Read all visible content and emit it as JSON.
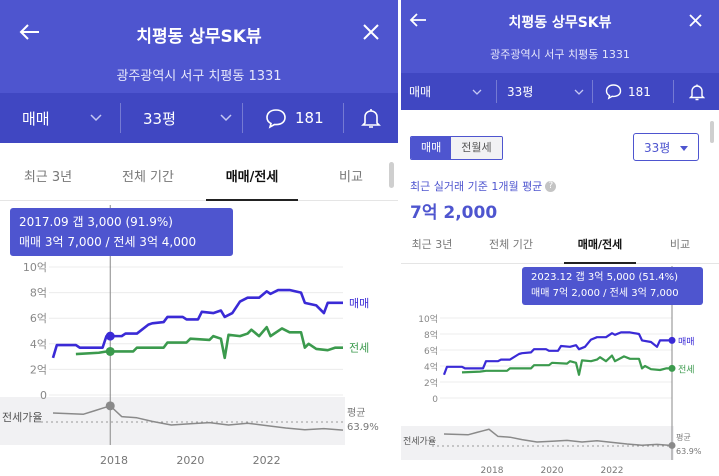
{
  "colors": {
    "header": "#4e55cf",
    "filter_bar": "#4047c2",
    "sale_line": "#3a2ad6",
    "rent_line": "#3b9a4d",
    "ratio_line": "#8a8a8a"
  },
  "left": {
    "header": {
      "title": "치평동 상무SK뷰",
      "address": "광주광역시 서구 치평동 1331"
    },
    "filters": {
      "deal_type": "매매",
      "size": "33평",
      "comments": "181"
    },
    "tabs": [
      "최근 3년",
      "전체 기간",
      "매매/전세",
      "비교"
    ],
    "active_tab": "매매/전세",
    "tooltip": {
      "line1": "2017.09  갭 3,000 (91.9%)",
      "line2": "매매 3억 7,000 / 전세 3억 4,000"
    }
  },
  "right": {
    "header": {
      "title": "치평동 상무SK뷰",
      "address": "광주광역시 서구 치평동 1331"
    },
    "filters": {
      "deal_type": "매매",
      "size": "33평",
      "comments": "181"
    },
    "toggle": [
      "매매",
      "전월세"
    ],
    "size_select": "33평",
    "avg_label": "최근 실거래 기준 1개월 평균",
    "avg_value": "7억 2,000",
    "tabs": [
      "최근 3년",
      "전체 기간",
      "매매/전세",
      "비교"
    ],
    "active_tab": "매매/전세",
    "tooltip": {
      "line1": "2023.12  갭 3억 5,000 (51.4%)",
      "line2": "매매 7억 2,000 / 전세 3억 7,000"
    }
  },
  "chart_data": {
    "type": "line",
    "y_ticks": [
      "10억",
      "8억",
      "6억",
      "4억",
      "2억",
      "0"
    ],
    "ylim": [
      0,
      10
    ],
    "x_ticks": [
      "2018",
      "2020",
      "2022"
    ],
    "xlim": [
      2016.4,
      2024.0
    ],
    "series": [
      {
        "name": "매매",
        "x": [
          2016.4,
          2016.5,
          2017.0,
          2017.1,
          2017.7,
          2017.8,
          2018.2,
          2018.3,
          2018.6,
          2018.9,
          2019.0,
          2019.3,
          2019.4,
          2019.8,
          2019.9,
          2020.2,
          2020.3,
          2020.6,
          2020.8,
          2020.9,
          2021.1,
          2021.3,
          2021.5,
          2021.8,
          2022.0,
          2022.1,
          2022.3,
          2022.6,
          2022.9,
          2023.0,
          2023.3,
          2023.5,
          2023.6,
          2023.8,
          2024.0
        ],
        "values": [
          2.9,
          3.9,
          3.9,
          3.7,
          3.7,
          4.6,
          4.6,
          4.8,
          4.8,
          5.5,
          5.6,
          5.7,
          6.1,
          6.1,
          5.9,
          5.9,
          6.5,
          6.4,
          6.6,
          6.1,
          6.4,
          7.3,
          7.6,
          7.6,
          8.1,
          7.9,
          8.2,
          8.2,
          8.0,
          7.2,
          7.0,
          6.4,
          7.2,
          7.2,
          7.2
        ]
      },
      {
        "name": "전세",
        "x": [
          2017.0,
          2017.6,
          2017.8,
          2018.5,
          2018.6,
          2019.3,
          2019.4,
          2019.9,
          2020.0,
          2020.5,
          2020.6,
          2020.8,
          2020.9,
          2021.0,
          2021.3,
          2021.5,
          2021.6,
          2021.8,
          2022.0,
          2022.1,
          2022.4,
          2022.6,
          2022.9,
          2023.0,
          2023.1,
          2023.3,
          2023.6,
          2023.8,
          2024.0
        ],
        "values": [
          3.2,
          3.3,
          3.4,
          3.4,
          3.7,
          3.7,
          4.1,
          4.1,
          4.4,
          4.3,
          4.6,
          4.4,
          2.9,
          4.7,
          4.6,
          4.8,
          5.1,
          4.6,
          5.3,
          4.6,
          5.2,
          4.9,
          4.9,
          3.7,
          4.0,
          3.6,
          3.5,
          3.7,
          3.7
        ]
      },
      {
        "name": "전세가율",
        "x": [
          2016.4,
          2017.2,
          2017.5,
          2017.7,
          2017.9,
          2018.2,
          2018.6,
          2019.0,
          2019.5,
          2020.0,
          2020.5,
          2021.0,
          2021.5,
          2022.0,
          2022.5,
          2023.0,
          2023.5,
          2024.0
        ],
        "values": [
          80,
          78,
          84,
          88,
          91.9,
          74,
          72,
          66,
          60,
          62,
          64,
          60,
          63,
          59,
          55,
          52,
          54,
          51.4
        ]
      }
    ],
    "ratio_label": "전세가율",
    "avg_label": "평균",
    "avg_value": "63.9%"
  }
}
